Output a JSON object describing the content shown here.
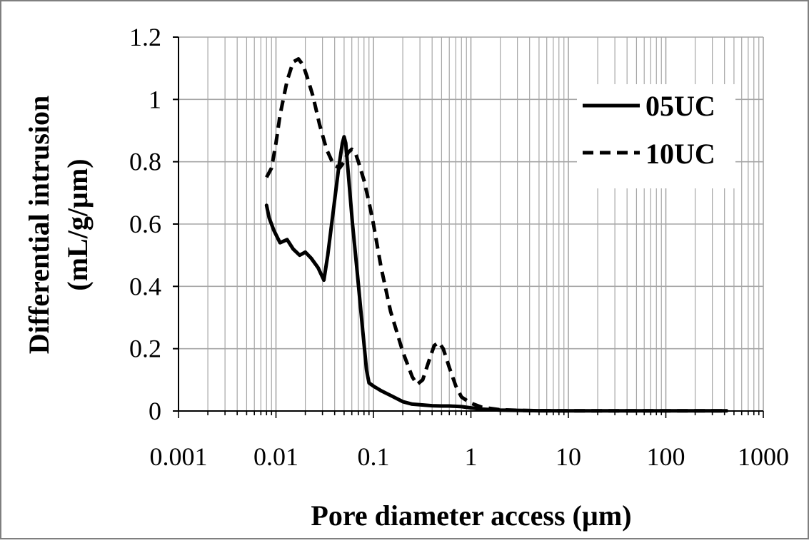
{
  "chart_data": {
    "type": "line",
    "title": "",
    "xlabel": "Pore diameter access (µm)",
    "ylabel_lines": [
      "Differential intrusion",
      "(mL/g/µm)"
    ],
    "xscale": "log",
    "xlim": [
      0.001,
      1000
    ],
    "ylim": [
      0,
      1.2
    ],
    "x_ticks": [
      0.001,
      0.01,
      0.1,
      1,
      10,
      100,
      1000
    ],
    "x_tick_labels": [
      "0.001",
      "0.01",
      "0.1",
      "1",
      "10",
      "100",
      "1000"
    ],
    "y_ticks": [
      0,
      0.2,
      0.4,
      0.6,
      0.8,
      1,
      1.2
    ],
    "y_tick_labels": [
      "0",
      "0.2",
      "0.4",
      "0.6",
      "0.8",
      "1",
      "1.2"
    ],
    "grid": true,
    "legend_position": "top-right",
    "colors": {
      "series": "#000000",
      "grid": "#a6a6a6",
      "frame": "#7f7f7f"
    },
    "series": [
      {
        "name": "05UC",
        "line_style": "solid",
        "x": [
          0.008,
          0.0085,
          0.0095,
          0.011,
          0.013,
          0.015,
          0.0175,
          0.02,
          0.023,
          0.027,
          0.031,
          0.034,
          0.039,
          0.044,
          0.048,
          0.05,
          0.052,
          0.056,
          0.061,
          0.068,
          0.077,
          0.085,
          0.09,
          0.1,
          0.12,
          0.15,
          0.2,
          0.25,
          0.3,
          0.4,
          0.5,
          0.6,
          0.8,
          1.0,
          1.3,
          2,
          3,
          5,
          10,
          30,
          100,
          420
        ],
        "y": [
          0.66,
          0.62,
          0.58,
          0.54,
          0.55,
          0.52,
          0.5,
          0.51,
          0.49,
          0.46,
          0.42,
          0.5,
          0.65,
          0.78,
          0.86,
          0.88,
          0.86,
          0.74,
          0.6,
          0.45,
          0.27,
          0.13,
          0.09,
          0.08,
          0.065,
          0.05,
          0.03,
          0.022,
          0.02,
          0.017,
          0.016,
          0.016,
          0.014,
          0.01,
          0.006,
          0.003,
          0.002,
          0.001,
          0.0005,
          0.0005,
          0.0005,
          0.0005
        ]
      },
      {
        "name": "10UC",
        "line_style": "dashed",
        "x": [
          0.008,
          0.009,
          0.01,
          0.011,
          0.013,
          0.015,
          0.017,
          0.019,
          0.021,
          0.024,
          0.028,
          0.033,
          0.039,
          0.045,
          0.05,
          0.055,
          0.06,
          0.065,
          0.07,
          0.08,
          0.09,
          0.1,
          0.12,
          0.15,
          0.2,
          0.25,
          0.28,
          0.32,
          0.37,
          0.42,
          0.47,
          0.52,
          0.6,
          0.7,
          0.8,
          1.0,
          1.3,
          2,
          3,
          5,
          10,
          30,
          100,
          420
        ],
        "y": [
          0.75,
          0.78,
          0.86,
          0.95,
          1.06,
          1.12,
          1.13,
          1.11,
          1.07,
          1.01,
          0.92,
          0.84,
          0.79,
          0.78,
          0.8,
          0.83,
          0.84,
          0.83,
          0.8,
          0.74,
          0.67,
          0.6,
          0.46,
          0.32,
          0.19,
          0.11,
          0.085,
          0.1,
          0.16,
          0.21,
          0.22,
          0.2,
          0.14,
          0.08,
          0.045,
          0.025,
          0.012,
          0.004,
          0.002,
          0.001,
          0.0005,
          0.0005,
          0.0005,
          0.0005
        ]
      }
    ]
  }
}
